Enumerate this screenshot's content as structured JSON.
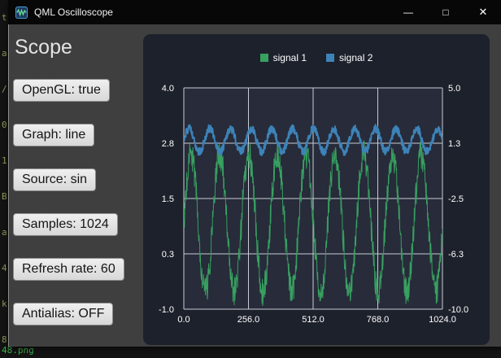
{
  "background": {
    "terminal_text": "t\na\n/\n0\n1\nB\na\n4\nk\n8",
    "terminal_bottom_text": "48.png"
  },
  "window": {
    "title": "QML Oscilloscope",
    "controls": {
      "minimize": "—",
      "maximize": "□",
      "close": "✕"
    }
  },
  "sidebar": {
    "title": "Scope",
    "buttons": [
      {
        "label": "OpenGL: true"
      },
      {
        "label": "Graph: line"
      },
      {
        "label": "Source: sin"
      },
      {
        "label": "Samples: 1024"
      },
      {
        "label": "Refresh rate: 60"
      },
      {
        "label": "Antialias: OFF"
      }
    ]
  },
  "chart_data": {
    "type": "line",
    "title": "",
    "legend_position": "top",
    "panel_bg": "#1d212c",
    "plot_bg": "#272b3a",
    "grid_color": "#c9ccd4",
    "x": {
      "label": "",
      "min": 0,
      "max": 1024,
      "ticks": [
        "0.0",
        "256.0",
        "512.0",
        "768.0",
        "1024.0"
      ]
    },
    "y_left": {
      "min": -1.0,
      "max": 4.0,
      "ticks": [
        "4.0",
        "2.8",
        "1.5",
        "0.3",
        "-1.0"
      ]
    },
    "y_right": {
      "min": -10.0,
      "max": 5.0,
      "ticks": [
        "5.0",
        "1.3",
        "-2.5",
        "-6.3",
        "-10.0"
      ]
    },
    "series": [
      {
        "name": "signal 1",
        "color": "#38a060",
        "axis": "left",
        "waveform": "noisy-sine",
        "mean": 0.95,
        "amplitude": 1.55,
        "period": 114,
        "noise": 0.33,
        "stroke_width": 1
      },
      {
        "name": "signal 2",
        "color": "#3d83b8",
        "axis": "left",
        "waveform": "noisy-sine",
        "mean": 2.82,
        "amplitude": 0.26,
        "period": 82,
        "noise": 0.09,
        "stroke_width": 2
      }
    ]
  }
}
